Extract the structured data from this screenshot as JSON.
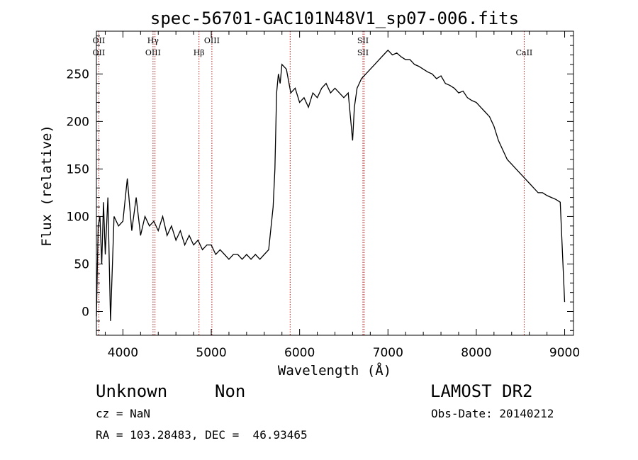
{
  "chart_data": {
    "type": "line",
    "title": "spec-56701-GAC101N48V1_sp07-006.fits",
    "xlabel": "Wavelength (Å)",
    "ylabel": "Flux (relative)",
    "xlim": [
      3700,
      9100
    ],
    "ylim": [
      -25,
      295
    ],
    "xticks": [
      4000,
      5000,
      6000,
      7000,
      8000,
      9000
    ],
    "yticks": [
      0,
      50,
      100,
      150,
      200,
      250
    ],
    "grid": false,
    "line_color": "#000000",
    "marker_color": "#b22222",
    "series": [
      {
        "x": [
          3700,
          3720,
          3740,
          3760,
          3780,
          3800,
          3830,
          3860,
          3900,
          3950,
          4000,
          4050,
          4100,
          4150,
          4200,
          4250,
          4300,
          4350,
          4400,
          4450,
          4500,
          4550,
          4600,
          4650,
          4700,
          4750,
          4800,
          4850,
          4900,
          4950,
          5000,
          5050,
          5100,
          5150,
          5200,
          5250,
          5300,
          5350,
          5400,
          5450,
          5500,
          5550,
          5600,
          5650,
          5700,
          5720,
          5740,
          5760,
          5780,
          5800,
          5850,
          5900,
          5950,
          6000,
          6050,
          6100,
          6150,
          6200,
          6250,
          6300,
          6350,
          6400,
          6450,
          6500,
          6550,
          6600,
          6620,
          6650,
          6700,
          6750,
          6800,
          6850,
          6900,
          6950,
          7000,
          7050,
          7100,
          7150,
          7200,
          7250,
          7300,
          7350,
          7400,
          7450,
          7500,
          7550,
          7600,
          7650,
          7700,
          7750,
          7800,
          7850,
          7900,
          7950,
          8000,
          8050,
          8100,
          8150,
          8200,
          8250,
          8300,
          8350,
          8400,
          8450,
          8500,
          8550,
          8600,
          8650,
          8700,
          8750,
          8800,
          8850,
          8900,
          8950,
          9000
        ],
        "y": [
          -5,
          90,
          100,
          50,
          115,
          60,
          120,
          -10,
          100,
          90,
          95,
          140,
          85,
          120,
          80,
          100,
          90,
          95,
          85,
          100,
          80,
          90,
          75,
          85,
          70,
          80,
          70,
          75,
          65,
          70,
          70,
          60,
          65,
          60,
          55,
          60,
          60,
          55,
          60,
          55,
          60,
          55,
          60,
          65,
          110,
          150,
          230,
          250,
          240,
          260,
          255,
          230,
          235,
          220,
          225,
          215,
          230,
          225,
          235,
          240,
          230,
          235,
          230,
          225,
          230,
          180,
          215,
          235,
          245,
          250,
          255,
          260,
          265,
          270,
          275,
          270,
          272,
          268,
          265,
          265,
          260,
          258,
          255,
          252,
          250,
          245,
          248,
          240,
          238,
          235,
          230,
          232,
          225,
          222,
          220,
          215,
          210,
          205,
          195,
          180,
          170,
          160,
          155,
          150,
          145,
          140,
          135,
          130,
          125,
          125,
          122,
          120,
          118,
          115,
          10
        ]
      }
    ],
    "lines": [
      {
        "label1": "OII",
        "label2": "OII",
        "x": 3727
      },
      {
        "label1": "Hγ",
        "label2": "OIII",
        "x": 4341
      },
      {
        "label1": "",
        "label2": "",
        "x": 4363
      },
      {
        "label1": "",
        "label2": "Hβ",
        "x": 4861
      },
      {
        "label1": "OIII",
        "label2": "",
        "x": 5007
      },
      {
        "label1": "",
        "label2": "",
        "x": 5893
      },
      {
        "label1": "SII",
        "label2": "SII",
        "x": 6717
      },
      {
        "label1": "",
        "label2": "",
        "x": 6731
      },
      {
        "label1": "",
        "label2": "CaII",
        "x": 8542
      }
    ]
  },
  "info": {
    "object_class": "Unknown",
    "subclass": "Non",
    "survey": "LAMOST DR2",
    "cz_label": "cz = NaN",
    "obs_date": "Obs-Date: 20140212",
    "radec": "RA = 103.28483, DEC =  46.93465"
  }
}
